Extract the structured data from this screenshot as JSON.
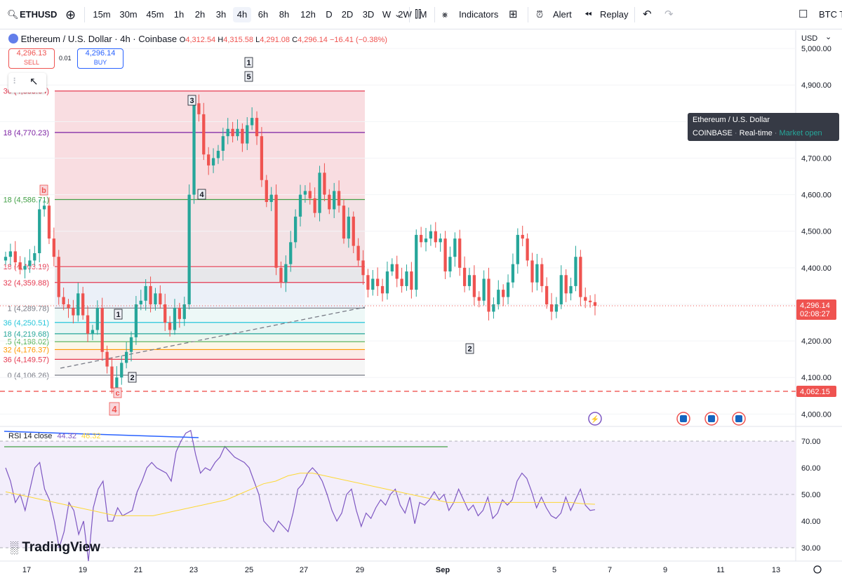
{
  "toolbar": {
    "symbol": "ETHUSD",
    "timeframes": [
      "15m",
      "30m",
      "45m",
      "1h",
      "2h",
      "3h",
      "4h",
      "6h",
      "8h",
      "12h",
      "D",
      "2D",
      "3D",
      "W",
      "2W",
      "M"
    ],
    "active_timeframe": "4h",
    "indicators_label": "Indicators",
    "alert_label": "Alert",
    "replay_label": "Replay",
    "right_symbol": "BTC T"
  },
  "legend": {
    "title": "Ethereum / U.S. Dollar · 4h · Coinbase",
    "o_label": "O",
    "o_value": "4,312.54",
    "h_label": "H",
    "h_value": "4,315.58",
    "l_label": "L",
    "l_value": "4,291.08",
    "c_label": "C",
    "c_value": "4,296.14",
    "change": "−16.41 (−0.38%)"
  },
  "trade": {
    "sell_price": "4,296.13",
    "sell_label": "SELL",
    "spread": "0.01",
    "buy_price": "4,296.14",
    "buy_label": "BUY"
  },
  "tooltip": {
    "line1": "Ethereum / U.S. Dollar",
    "exchange": "COINBASE",
    "rt": "Real-time",
    "status": "Market open"
  },
  "currency": "USD",
  "colors": {
    "up": "#26a69a",
    "down": "#ef5350",
    "rsi": "#7e57c2",
    "rsi_ma": "#fdd835",
    "accent": "#2962ff"
  },
  "chart_data": [
    {
      "type": "candlestick",
      "title": "Ethereum / U.S. Dollar · 4h · Coinbase",
      "y_ticks": [
        "5,000.00",
        "4,900.00",
        "4,800.00",
        "4,700.00",
        "4,600.00",
        "4,500.00",
        "4,400.00",
        "4,300.00",
        "4,200.00",
        "4,100.00",
        "4,000.00"
      ],
      "ylim": [
        3970,
        5050
      ],
      "x_ticks": [
        "17",
        "19",
        "21",
        "23",
        "25",
        "27",
        "29",
        "Sep",
        "3",
        "5",
        "7",
        "9",
        "11",
        "13"
      ],
      "last_price": "4,296.14",
      "countdown": "02:08:27",
      "alert_price": "4,062.15",
      "closes": [
        4430,
        4445,
        4415,
        4395,
        4405,
        4420,
        4440,
        4560,
        4570,
        4480,
        4430,
        4320,
        4300,
        4290,
        4270,
        4330,
        4270,
        4220,
        4230,
        4290,
        4170,
        4130,
        4070,
        4100,
        4140,
        4170,
        4210,
        4300,
        4310,
        4350,
        4300,
        4330,
        4300,
        4250,
        4230,
        4290,
        4260,
        4300,
        4600,
        4850,
        4820,
        4710,
        4680,
        4700,
        4720,
        4760,
        4780,
        4760,
        4780,
        4740,
        4790,
        4810,
        4760,
        4640,
        4580,
        4600,
        4400,
        4360,
        4410,
        4470,
        4540,
        4600,
        4610,
        4590,
        4550,
        4660,
        4600,
        4560,
        4610,
        4570,
        4480,
        4540,
        4460,
        4420,
        4380,
        4340,
        4370,
        4350,
        4330,
        4390,
        4410,
        4370,
        4350,
        4390,
        4340,
        4490,
        4470,
        4480,
        4500,
        4470,
        4480,
        4390,
        4430,
        4480,
        4400,
        4350,
        4380,
        4320,
        4310,
        4370,
        4280,
        4300,
        4340,
        4320,
        4360,
        4410,
        4490,
        4480,
        4420,
        4360,
        4410,
        4350,
        4300,
        4280,
        4300,
        4380,
        4330,
        4350,
        4430,
        4320,
        4310,
        4306,
        4296
      ],
      "fib_levels": [
        {
          "label": "36 (4,883.64)",
          "value": 4883.64
        },
        {
          "label": "18 (4,770.23)",
          "value": 4770.23
        },
        {
          "label": "18 (4,586.71)",
          "value": 4586.71
        },
        {
          "label": "18 (4,403.19)",
          "value": 4403.19
        },
        {
          "label": "32 (4,359.88)",
          "value": 4359.88
        },
        {
          "label": "1 (4,289.78)",
          "value": 4289.78
        },
        {
          "label": "36 (4,250.51)",
          "value": 4250.51
        },
        {
          "label": "18 (4,219.68)",
          "value": 4219.68
        },
        {
          "label": ".5 (4,198.02)",
          "value": 4198.02
        },
        {
          "label": "32 (4,176.37)",
          "value": 4176.37
        },
        {
          "label": "36 (4,149.57)",
          "value": 4149.57
        },
        {
          "label": "0 (4,106.26)",
          "value": 4106.26
        }
      ],
      "wave_labels": [
        "1",
        "5",
        "3",
        "4",
        "b",
        "1",
        "2",
        "c",
        "4",
        "2"
      ]
    },
    {
      "type": "line",
      "title": "RSI 14 close",
      "values_shown": [
        "44.32",
        "46.32"
      ],
      "y_ticks": [
        "70.00",
        "60.00",
        "50.00",
        "40.00",
        "30.00"
      ],
      "ylim": [
        25,
        75
      ],
      "series": [
        {
          "name": "RSI",
          "values": [
            60,
            55,
            47,
            50,
            44,
            52,
            60,
            62,
            52,
            48,
            40,
            30,
            36,
            47,
            44,
            35,
            40,
            25,
            45,
            52,
            55,
            40,
            40,
            45,
            42,
            43,
            44,
            51,
            55,
            60,
            62,
            60,
            59,
            58,
            55,
            66,
            70,
            73,
            74,
            65,
            58,
            60,
            59,
            62,
            64,
            68,
            66,
            64,
            63,
            62,
            60,
            55,
            50,
            40,
            38,
            36,
            40,
            38,
            36,
            43,
            52,
            54,
            58,
            60,
            58,
            55,
            50,
            44,
            40,
            43,
            50,
            52,
            44,
            38,
            43,
            41,
            45,
            48,
            46,
            50,
            52,
            46,
            43,
            49,
            39,
            47,
            46,
            48,
            51,
            48,
            50,
            44,
            47,
            52,
            48,
            44,
            46,
            42,
            44,
            49,
            41,
            43,
            48,
            46,
            48,
            55,
            58,
            56,
            51,
            45,
            49,
            45,
            42,
            41,
            43,
            49,
            44,
            48,
            52,
            46,
            44,
            44.3
          ]
        },
        {
          "name": "RSI-based MA",
          "values": [
            51,
            50,
            49,
            48,
            47,
            46,
            45,
            44,
            43,
            42,
            42,
            42,
            42,
            43,
            44,
            45,
            46,
            47,
            48,
            50,
            52,
            54,
            55,
            57,
            58,
            58,
            57,
            56,
            55,
            54,
            53,
            52,
            51,
            50,
            49,
            48,
            47,
            47,
            47,
            47,
            47,
            47,
            47,
            47,
            47,
            47,
            47,
            46.5,
            46.3
          ]
        }
      ]
    }
  ],
  "branding": {
    "logo_text": "TradingView"
  }
}
